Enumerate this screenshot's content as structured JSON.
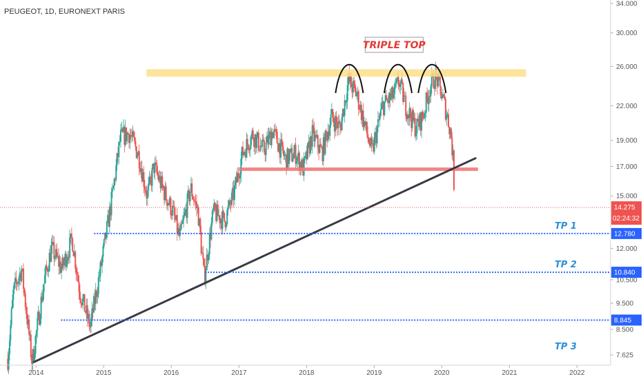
{
  "header": {
    "symbol": "PEUGEOT, 1D, EURONEXT PARIS"
  },
  "chart_data": {
    "type": "candlestick",
    "y_scale": "log",
    "ylim": [
      7.3,
      34.5
    ],
    "xlim": [
      "2013-06-20",
      "2022-07-01"
    ],
    "y_ticks": [
      {
        "v": 7.625,
        "label": "7.625"
      },
      {
        "v": 8.5,
        "label": "8.500"
      },
      {
        "v": 9.5,
        "label": "9.500"
      },
      {
        "v": 10.5,
        "label": "10.500"
      },
      {
        "v": 12.0,
        "label": "12.000"
      },
      {
        "v": 15.0,
        "label": "15.000"
      },
      {
        "v": 17.0,
        "label": "17.000"
      },
      {
        "v": 19.0,
        "label": "19.000"
      },
      {
        "v": 22.0,
        "label": "22.000"
      },
      {
        "v": 26.0,
        "label": "26.000"
      },
      {
        "v": 30.0,
        "label": "30.000"
      },
      {
        "v": 34.0,
        "label": "34.000"
      }
    ],
    "x_ticks": [
      {
        "t": "2014-01-01",
        "label": "2014"
      },
      {
        "t": "2015-01-01",
        "label": "2015"
      },
      {
        "t": "2016-01-01",
        "label": "2016"
      },
      {
        "t": "2017-01-01",
        "label": "2017"
      },
      {
        "t": "2018-01-01",
        "label": "2018"
      },
      {
        "t": "2019-01-01",
        "label": "2019"
      },
      {
        "t": "2020-01-01",
        "label": "2020"
      },
      {
        "t": "2021-01-01",
        "label": "2021"
      },
      {
        "t": "2022-01-01",
        "label": "2022"
      }
    ],
    "price_path": [
      [
        "2013-08-01",
        7.5
      ],
      [
        "2013-09-01",
        10.0
      ],
      [
        "2013-10-15",
        11.0
      ],
      [
        "2013-12-10",
        7.4
      ],
      [
        "2014-02-15",
        10.5
      ],
      [
        "2014-03-25",
        12.0
      ],
      [
        "2014-05-20",
        11.0
      ],
      [
        "2014-07-15",
        12.5
      ],
      [
        "2014-08-25",
        10.0
      ],
      [
        "2014-10-20",
        8.6
      ],
      [
        "2014-12-15",
        11.0
      ],
      [
        "2015-02-10",
        14.5
      ],
      [
        "2015-04-01",
        19.2
      ],
      [
        "2015-05-20",
        19.6
      ],
      [
        "2015-07-10",
        17.8
      ],
      [
        "2015-08-24",
        15.0
      ],
      [
        "2015-09-30",
        17.0
      ],
      [
        "2015-11-15",
        15.5
      ],
      [
        "2016-01-10",
        14.0
      ],
      [
        "2016-02-15",
        12.5
      ],
      [
        "2016-04-15",
        15.5
      ],
      [
        "2016-05-25",
        14.0
      ],
      [
        "2016-06-27",
        10.6
      ],
      [
        "2016-08-15",
        14.0
      ],
      [
        "2016-10-15",
        13.5
      ],
      [
        "2016-12-01",
        15.0
      ],
      [
        "2017-01-20",
        18.0
      ],
      [
        "2017-03-15",
        19.5
      ],
      [
        "2017-05-15",
        18.2
      ],
      [
        "2017-07-01",
        19.8
      ],
      [
        "2017-09-10",
        17.5
      ],
      [
        "2017-11-01",
        18.0
      ],
      [
        "2017-12-15",
        16.8
      ],
      [
        "2018-02-01",
        19.5
      ],
      [
        "2018-03-25",
        18.0
      ],
      [
        "2018-05-15",
        21.0
      ],
      [
        "2018-07-01",
        20.0
      ],
      [
        "2018-08-15",
        24.5
      ],
      [
        "2018-10-01",
        23.0
      ],
      [
        "2018-11-15",
        20.0
      ],
      [
        "2018-12-20",
        18.0
      ],
      [
        "2019-02-15",
        22.0
      ],
      [
        "2019-04-15",
        23.0
      ],
      [
        "2019-05-15",
        24.5
      ],
      [
        "2019-06-20",
        22.0
      ],
      [
        "2019-08-15",
        20.0
      ],
      [
        "2019-09-20",
        21.0
      ],
      [
        "2019-11-01",
        24.0
      ],
      [
        "2019-12-01",
        25.0
      ],
      [
        "2020-01-10",
        22.5
      ],
      [
        "2020-02-01",
        21.0
      ],
      [
        "2020-02-20",
        19.5
      ],
      [
        "2020-03-05",
        17.0
      ],
      [
        "2020-03-10",
        14.3
      ]
    ],
    "current_price": 14.275,
    "levels": [
      {
        "name": "TP 1",
        "price": 12.78,
        "label": "12.780",
        "from": "2014-11-10"
      },
      {
        "name": "TP 2",
        "price": 10.84,
        "label": "10.840",
        "from": "2016-07-01"
      },
      {
        "name": "TP 3",
        "price": 8.845,
        "label": "8.845",
        "from": "2014-05-15"
      }
    ],
    "tp3_note_price": 7.9,
    "resistance_zone": {
      "from": "2015-08-20",
      "to": "2021-03-31",
      "low": 24.9,
      "high": 25.7
    },
    "support_line": {
      "from": "2017-01-01",
      "to": "2020-07-15",
      "price": 16.8
    },
    "trendline": {
      "p1": [
        "2013-12-20",
        7.4
      ],
      "p2": [
        "2020-07-01",
        17.6
      ]
    },
    "triple_top": {
      "label": "TRIPLE TOP",
      "peaks": [
        [
          "2018-08-20",
          26.5
        ],
        [
          "2019-05-10",
          26.5
        ],
        [
          "2019-11-10",
          26.5
        ]
      ]
    },
    "price_tag": {
      "price": "14.275",
      "countdown": "02:24:32"
    },
    "colors": {
      "up": "#26a69a",
      "down": "#ef5350",
      "level": "#2962ff",
      "tp_text": "#2e90d6",
      "zone": "#fbdf8a",
      "support": "#f07a7a",
      "trend": "#363a45",
      "price_line": "#ef5350",
      "tag_blue": "#2962ff",
      "tag_red": "#ef5350"
    }
  }
}
